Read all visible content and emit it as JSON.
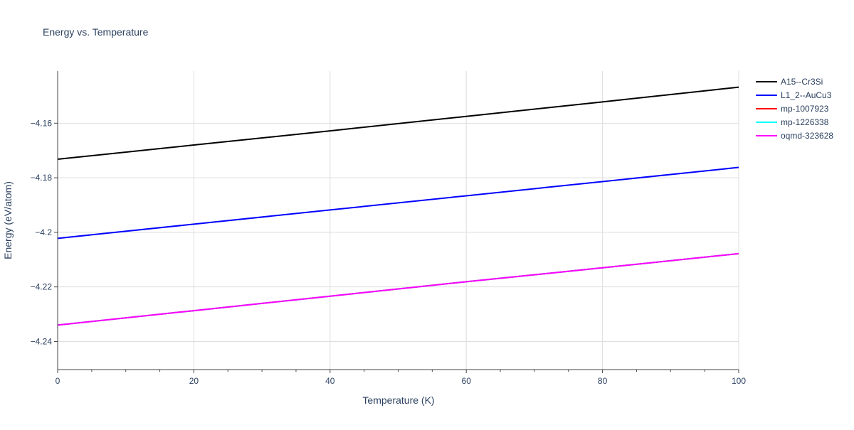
{
  "chart_data": {
    "type": "line",
    "title": "Energy vs. Temperature",
    "xlabel": "Temperature (K)",
    "ylabel": "Energy (eV/atom)",
    "xlim": [
      0,
      100
    ],
    "ylim": [
      -4.2503,
      -4.1409
    ],
    "x_ticks": [
      0,
      20,
      40,
      60,
      80,
      100
    ],
    "y_ticks": [
      -4.24,
      -4.22,
      -4.2,
      -4.18,
      -4.16
    ],
    "x_tick_labels": [
      "0",
      "20",
      "40",
      "60",
      "80",
      "100"
    ],
    "y_tick_labels": [
      "−4.24",
      "−4.22",
      "−4.2",
      "−4.18",
      "−4.16"
    ],
    "grid": true,
    "legend_position": "top-right outside",
    "series": [
      {
        "name": "A15--Cr3Si",
        "color": "#000000",
        "x": [
          0,
          20,
          40,
          60,
          80,
          100
        ],
        "y": [
          -4.1732,
          -4.168,
          -4.1628,
          -4.1575,
          -4.1522,
          -4.1468
        ]
      },
      {
        "name": "L1_2--AuCu3",
        "color": "#0000ff",
        "x": [
          0,
          20,
          40,
          60,
          80,
          100
        ],
        "y": [
          -4.2022,
          -4.197,
          -4.1918,
          -4.1866,
          -4.1814,
          -4.1762
        ]
      },
      {
        "name": "mp-1007923",
        "color": "#ff0000",
        "x": [
          0,
          20,
          40,
          60,
          80,
          100
        ],
        "y": [
          -4.234,
          -4.2287,
          -4.2234,
          -4.2181,
          -4.213,
          -4.2078
        ]
      },
      {
        "name": "mp-1226338",
        "color": "#00ffff",
        "x": [
          0,
          20,
          40,
          60,
          80,
          100
        ],
        "y": [
          -4.234,
          -4.2287,
          -4.2234,
          -4.2181,
          -4.213,
          -4.2078
        ]
      },
      {
        "name": "oqmd-323628",
        "color": "#ff00ff",
        "x": [
          0,
          20,
          40,
          60,
          80,
          100
        ],
        "y": [
          -4.234,
          -4.2287,
          -4.2234,
          -4.2181,
          -4.213,
          -4.2078
        ]
      }
    ]
  }
}
